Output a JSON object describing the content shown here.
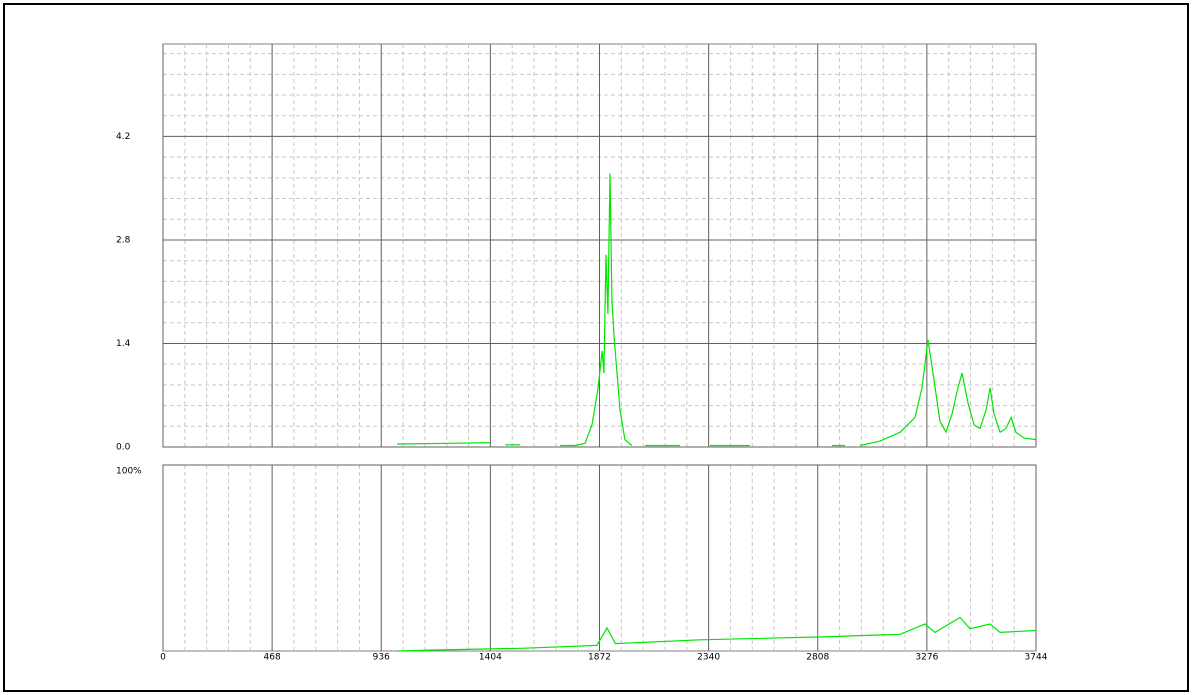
{
  "chart_data": [
    {
      "type": "line",
      "color": "#00e600",
      "x": [
        1004,
        1231,
        1402,
        null,
        1467,
        1531,
        null,
        1703,
        1767,
        1810,
        1840,
        1866,
        1883,
        1891,
        1900,
        1908,
        1917,
        1925,
        1934,
        1947,
        1960,
        1981,
        2011,
        null,
        2067,
        2217,
        null,
        2346,
        2517,
        null,
        2869,
        2925,
        null,
        2989,
        3075,
        3161,
        3225,
        3255,
        3281,
        3307,
        3332,
        3358,
        3384,
        3409,
        3427,
        3452,
        3478,
        3504,
        3530,
        3547,
        3564,
        3590,
        3615,
        3637,
        3658,
        3693,
        3744
      ],
      "values": [
        0.04,
        0.05,
        0.06,
        null,
        0.03,
        0.03,
        null,
        0.02,
        0.02,
        0.05,
        0.3,
        0.8,
        1.3,
        1.0,
        2.6,
        1.8,
        3.7,
        2.0,
        1.5,
        1.0,
        0.5,
        0.1,
        0.02,
        null,
        0.02,
        0.02,
        null,
        0.02,
        0.02,
        null,
        0.02,
        0.02,
        null,
        0.02,
        0.08,
        0.2,
        0.4,
        0.8,
        1.45,
        0.9,
        0.35,
        0.2,
        0.45,
        0.8,
        1.0,
        0.6,
        0.3,
        0.25,
        0.5,
        0.8,
        0.45,
        0.2,
        0.25,
        0.4,
        0.2,
        0.12,
        0.1
      ],
      "xlim": [
        0,
        3744
      ],
      "ylim": [
        0,
        5.45
      ],
      "yticks": [
        {
          "value": 0,
          "label": "0.0"
        },
        1.4,
        2.8,
        4.2
      ],
      "grid": true
    },
    {
      "type": "line",
      "color": "#00e600",
      "x": [
        1004,
        1145,
        1552,
        1861,
        1904,
        1940,
        2303,
        2809,
        3161,
        3268,
        3311,
        3418,
        3461,
        3547,
        3590,
        3744
      ],
      "values": [
        0,
        0.5,
        1.5,
        3,
        12.4,
        4,
        6,
        7.5,
        9,
        14.5,
        10,
        18,
        12,
        14.5,
        10,
        11
      ],
      "xlim": [
        0,
        3744
      ],
      "ylim": [
        0,
        100
      ],
      "xticks": [
        0,
        468,
        936,
        1404,
        1872,
        2340,
        2808,
        3276,
        3744
      ],
      "yticks": [
        {
          "value": 100,
          "label": "100%"
        }
      ],
      "grid": true
    }
  ]
}
